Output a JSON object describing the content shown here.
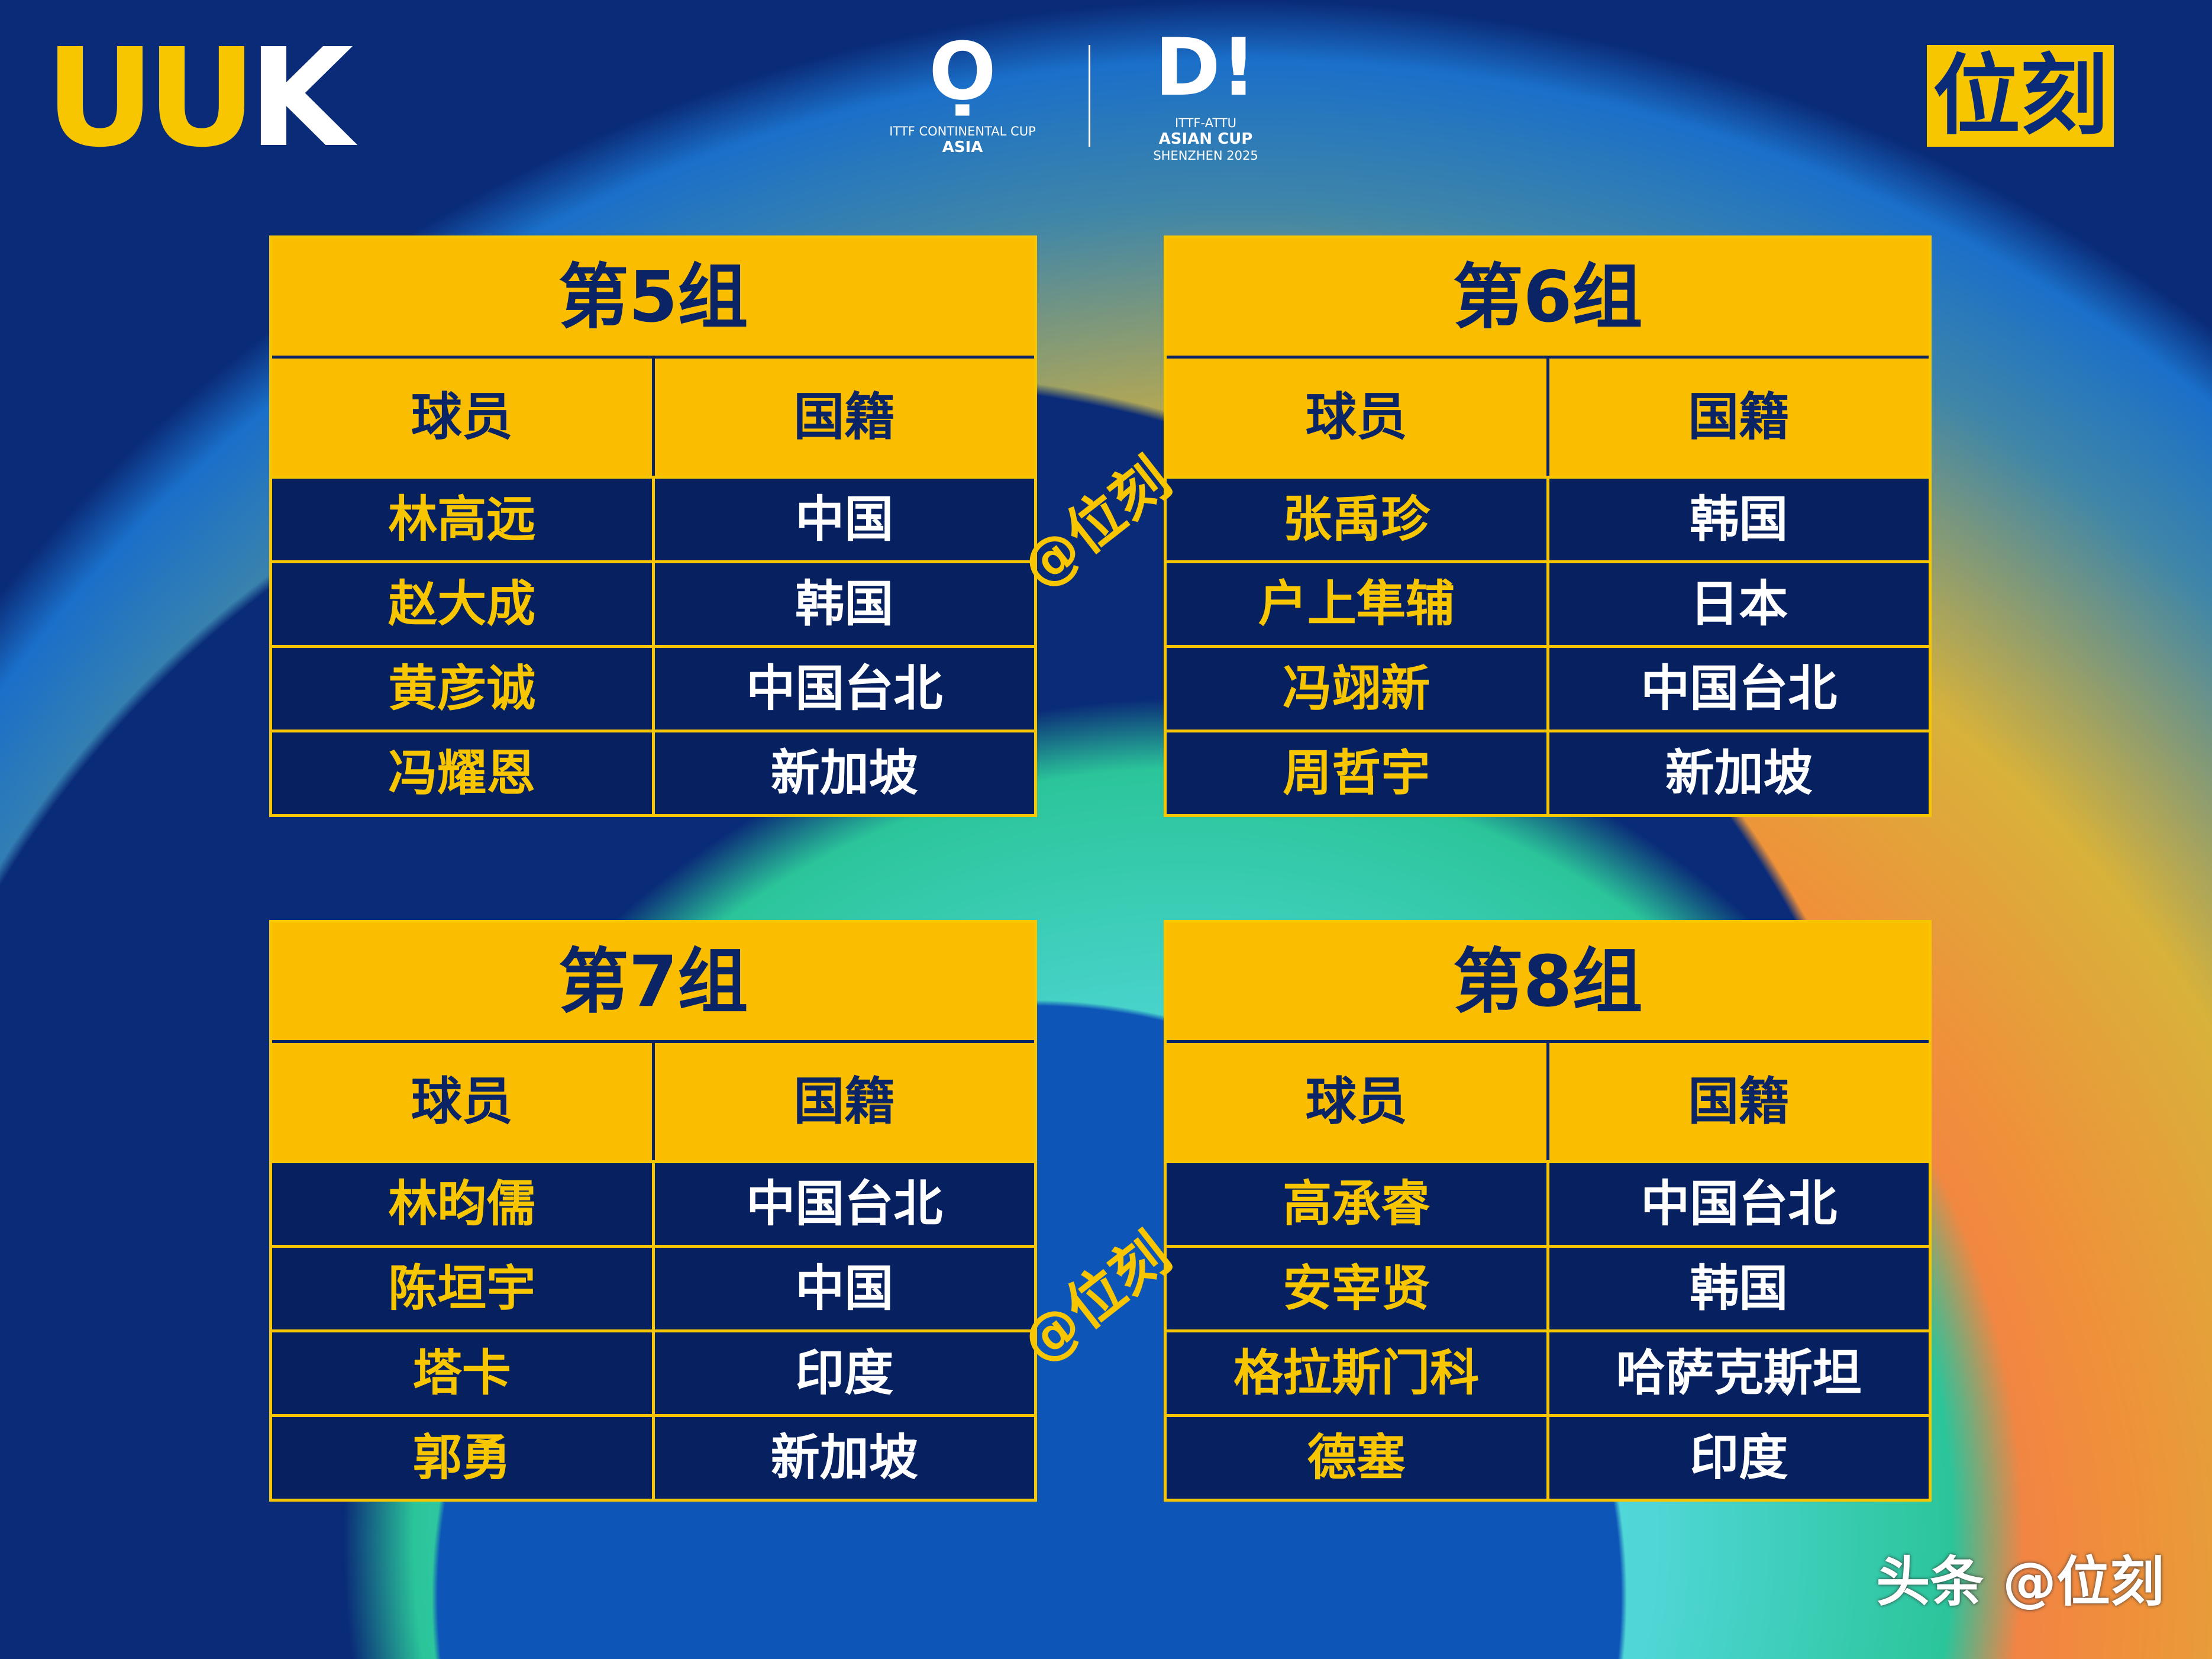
{
  "branding": {
    "left_logo": "UUK",
    "right_logo": "位刻",
    "ittf_logo": {
      "line1": "ITTF CONTINENTAL CUP",
      "line2": "ASIA"
    },
    "asian_cup_logo": {
      "line1": "ITTF-ATTU",
      "line2": "ASIAN CUP",
      "line3": "SHENZHEN 2025"
    }
  },
  "colors": {
    "gold": "#fbbd00",
    "navy": "#0a2466"
  },
  "headers": {
    "player": "球员",
    "nationality": "国籍"
  },
  "groups": [
    {
      "title": "第5组",
      "rows": [
        {
          "player": "林高远",
          "nation": "中国"
        },
        {
          "player": "赵大成",
          "nation": "韩国"
        },
        {
          "player": "黄彦诚",
          "nation": "中国台北"
        },
        {
          "player": "冯耀恩",
          "nation": "新加坡"
        }
      ]
    },
    {
      "title": "第6组",
      "rows": [
        {
          "player": "张禹珍",
          "nation": "韩国"
        },
        {
          "player": "户上隼辅",
          "nation": "日本"
        },
        {
          "player": "冯翊新",
          "nation": "中国台北"
        },
        {
          "player": "周哲宇",
          "nation": "新加坡"
        }
      ]
    },
    {
      "title": "第7组",
      "rows": [
        {
          "player": "林昀儒",
          "nation": "中国台北"
        },
        {
          "player": "陈垣宇",
          "nation": "中国"
        },
        {
          "player": "塔卡",
          "nation": "印度"
        },
        {
          "player": "郭勇",
          "nation": "新加坡"
        }
      ]
    },
    {
      "title": "第8组",
      "rows": [
        {
          "player": "高承睿",
          "nation": "中国台北"
        },
        {
          "player": "安宰贤",
          "nation": "韩国"
        },
        {
          "player": "格拉斯门科",
          "nation": "哈萨克斯坦"
        },
        {
          "player": "德塞",
          "nation": "印度"
        }
      ]
    }
  ],
  "watermark": "@位刻",
  "footer": "头条 @位刻"
}
